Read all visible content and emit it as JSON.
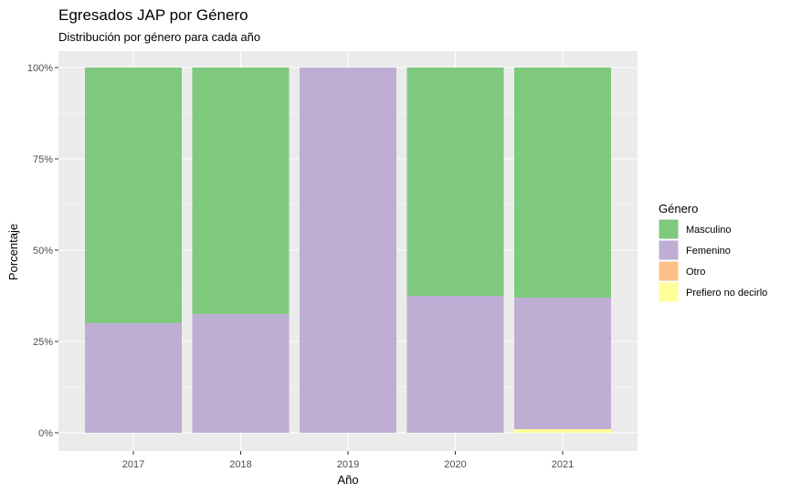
{
  "chart_data": {
    "type": "bar",
    "stacked": true,
    "title": "Egresados JAP por Género",
    "subtitle": "Distribución por género para cada año",
    "xlabel": "Año",
    "ylabel": "Porcentaje",
    "categories": [
      "2017",
      "2018",
      "2019",
      "2020",
      "2021"
    ],
    "y_ticks": [
      {
        "value": 0,
        "label": "0%"
      },
      {
        "value": 0.25,
        "label": "25%"
      },
      {
        "value": 0.5,
        "label": "50%"
      },
      {
        "value": 0.75,
        "label": "75%"
      },
      {
        "value": 1,
        "label": "100%"
      }
    ],
    "ylim": [
      0,
      1
    ],
    "grid": true,
    "legend": {
      "title": "Género",
      "placement": "right"
    },
    "series": [
      {
        "name": "Masculino",
        "color": "#7fc97f",
        "values": [
          0.7,
          0.675,
          0.0,
          0.625,
          0.63
        ]
      },
      {
        "name": "Femenino",
        "color": "#beaed4",
        "values": [
          0.3,
          0.325,
          1.0,
          0.375,
          0.36
        ]
      },
      {
        "name": "Otro",
        "color": "#fdc086",
        "values": [
          0.0,
          0.0,
          0.0,
          0.0,
          0.0
        ]
      },
      {
        "name": "Prefiero no decirlo",
        "color": "#ffff99",
        "values": [
          0.0,
          0.0,
          0.0,
          0.0,
          0.01
        ]
      }
    ]
  }
}
